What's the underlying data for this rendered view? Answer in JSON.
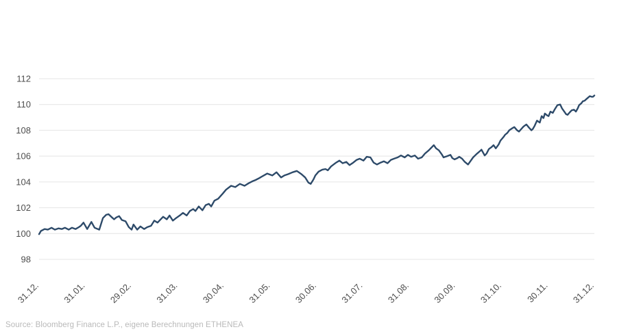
{
  "chart_data": {
    "type": "line",
    "title": "",
    "xlabel": "",
    "ylabel": "",
    "legend": "none",
    "grid": "horizontal",
    "line_color": "#2d4a69",
    "grid_color": "#e4e4e4",
    "tick_label_color": "#4d4d4d",
    "ylim": [
      98,
      112
    ],
    "y_ticks": [
      112,
      110,
      108,
      106,
      104,
      102,
      100,
      98
    ],
    "x_tick_labels": [
      "31.12.",
      "31.01.",
      "29.02.",
      "31.03.",
      "30.04.",
      "31.05.",
      "30.06.",
      "31.07.",
      "31.08.",
      "30.09.",
      "31.10.",
      "30.11.",
      "31.12."
    ],
    "x_unit": "months_from_start",
    "points": [
      [
        0.0,
        99.95
      ],
      [
        0.04,
        100.2
      ],
      [
        0.12,
        100.35
      ],
      [
        0.19,
        100.3
      ],
      [
        0.27,
        100.45
      ],
      [
        0.34,
        100.3
      ],
      [
        0.42,
        100.4
      ],
      [
        0.49,
        100.35
      ],
      [
        0.56,
        100.45
      ],
      [
        0.64,
        100.3
      ],
      [
        0.71,
        100.45
      ],
      [
        0.79,
        100.35
      ],
      [
        0.86,
        100.5
      ],
      [
        0.9,
        100.6
      ],
      [
        0.96,
        100.85
      ],
      [
        1.04,
        100.35
      ],
      [
        1.13,
        100.9
      ],
      [
        1.2,
        100.45
      ],
      [
        1.3,
        100.3
      ],
      [
        1.38,
        101.2
      ],
      [
        1.45,
        101.45
      ],
      [
        1.5,
        101.5
      ],
      [
        1.56,
        101.3
      ],
      [
        1.62,
        101.1
      ],
      [
        1.67,
        101.25
      ],
      [
        1.73,
        101.35
      ],
      [
        1.79,
        101.05
      ],
      [
        1.87,
        100.95
      ],
      [
        1.94,
        100.5
      ],
      [
        2.0,
        100.3
      ],
      [
        2.04,
        100.7
      ],
      [
        2.12,
        100.3
      ],
      [
        2.19,
        100.55
      ],
      [
        2.27,
        100.35
      ],
      [
        2.34,
        100.5
      ],
      [
        2.42,
        100.6
      ],
      [
        2.49,
        101.0
      ],
      [
        2.56,
        100.85
      ],
      [
        2.68,
        101.3
      ],
      [
        2.76,
        101.1
      ],
      [
        2.82,
        101.4
      ],
      [
        2.89,
        101.0
      ],
      [
        2.96,
        101.2
      ],
      [
        3.04,
        101.4
      ],
      [
        3.11,
        101.6
      ],
      [
        3.19,
        101.4
      ],
      [
        3.26,
        101.75
      ],
      [
        3.33,
        101.9
      ],
      [
        3.38,
        101.75
      ],
      [
        3.45,
        102.1
      ],
      [
        3.53,
        101.8
      ],
      [
        3.6,
        102.2
      ],
      [
        3.67,
        102.3
      ],
      [
        3.72,
        102.1
      ],
      [
        3.79,
        102.55
      ],
      [
        3.87,
        102.7
      ],
      [
        3.97,
        103.1
      ],
      [
        4.04,
        103.4
      ],
      [
        4.15,
        103.7
      ],
      [
        4.24,
        103.6
      ],
      [
        4.34,
        103.85
      ],
      [
        4.44,
        103.7
      ],
      [
        4.53,
        103.9
      ],
      [
        4.61,
        104.05
      ],
      [
        4.68,
        104.15
      ],
      [
        4.76,
        104.3
      ],
      [
        4.83,
        104.45
      ],
      [
        4.93,
        104.65
      ],
      [
        5.04,
        104.5
      ],
      [
        5.13,
        104.75
      ],
      [
        5.23,
        104.35
      ],
      [
        5.3,
        104.5
      ],
      [
        5.38,
        104.6
      ],
      [
        5.48,
        104.75
      ],
      [
        5.57,
        104.85
      ],
      [
        5.67,
        104.6
      ],
      [
        5.75,
        104.35
      ],
      [
        5.82,
        103.95
      ],
      [
        5.87,
        103.85
      ],
      [
        5.93,
        104.2
      ],
      [
        5.97,
        104.5
      ],
      [
        6.04,
        104.8
      ],
      [
        6.12,
        104.95
      ],
      [
        6.19,
        105.0
      ],
      [
        6.24,
        104.9
      ],
      [
        6.31,
        105.2
      ],
      [
        6.42,
        105.5
      ],
      [
        6.49,
        105.65
      ],
      [
        6.56,
        105.45
      ],
      [
        6.64,
        105.55
      ],
      [
        6.71,
        105.3
      ],
      [
        6.79,
        105.5
      ],
      [
        6.86,
        105.7
      ],
      [
        6.93,
        105.8
      ],
      [
        7.01,
        105.65
      ],
      [
        7.08,
        105.95
      ],
      [
        7.16,
        105.9
      ],
      [
        7.23,
        105.5
      ],
      [
        7.3,
        105.35
      ],
      [
        7.38,
        105.5
      ],
      [
        7.45,
        105.6
      ],
      [
        7.53,
        105.45
      ],
      [
        7.6,
        105.7
      ],
      [
        7.67,
        105.8
      ],
      [
        7.75,
        105.9
      ],
      [
        7.82,
        106.05
      ],
      [
        7.9,
        105.9
      ],
      [
        7.97,
        106.1
      ],
      [
        8.04,
        105.95
      ],
      [
        8.12,
        106.05
      ],
      [
        8.19,
        105.8
      ],
      [
        8.27,
        105.9
      ],
      [
        8.34,
        106.2
      ],
      [
        8.42,
        106.45
      ],
      [
        8.49,
        106.7
      ],
      [
        8.53,
        106.85
      ],
      [
        8.58,
        106.6
      ],
      [
        8.64,
        106.45
      ],
      [
        8.71,
        106.1
      ],
      [
        8.74,
        105.9
      ],
      [
        8.82,
        106.0
      ],
      [
        8.89,
        106.1
      ],
      [
        8.93,
        105.85
      ],
      [
        8.98,
        105.75
      ],
      [
        9.04,
        105.85
      ],
      [
        9.08,
        105.95
      ],
      [
        9.14,
        105.8
      ],
      [
        9.2,
        105.55
      ],
      [
        9.27,
        105.35
      ],
      [
        9.38,
        105.9
      ],
      [
        9.45,
        106.15
      ],
      [
        9.53,
        106.4
      ],
      [
        9.56,
        106.5
      ],
      [
        9.63,
        106.05
      ],
      [
        9.67,
        106.2
      ],
      [
        9.72,
        106.55
      ],
      [
        9.78,
        106.7
      ],
      [
        9.82,
        106.85
      ],
      [
        9.87,
        106.6
      ],
      [
        9.93,
        106.9
      ],
      [
        9.97,
        107.2
      ],
      [
        10.04,
        107.5
      ],
      [
        10.07,
        107.65
      ],
      [
        10.12,
        107.8
      ],
      [
        10.16,
        108.0
      ],
      [
        10.22,
        108.15
      ],
      [
        10.27,
        108.25
      ],
      [
        10.33,
        108.0
      ],
      [
        10.37,
        107.9
      ],
      [
        10.42,
        108.1
      ],
      [
        10.47,
        108.3
      ],
      [
        10.53,
        108.45
      ],
      [
        10.59,
        108.2
      ],
      [
        10.64,
        108.0
      ],
      [
        10.67,
        108.1
      ],
      [
        10.71,
        108.35
      ],
      [
        10.76,
        108.75
      ],
      [
        10.82,
        108.6
      ],
      [
        10.86,
        109.1
      ],
      [
        10.9,
        108.95
      ],
      [
        10.93,
        109.3
      ],
      [
        10.98,
        109.15
      ],
      [
        11.01,
        109.1
      ],
      [
        11.05,
        109.45
      ],
      [
        11.1,
        109.35
      ],
      [
        11.14,
        109.6
      ],
      [
        11.2,
        109.95
      ],
      [
        11.26,
        110.0
      ],
      [
        11.3,
        109.7
      ],
      [
        11.35,
        109.45
      ],
      [
        11.39,
        109.25
      ],
      [
        11.42,
        109.2
      ],
      [
        11.47,
        109.4
      ],
      [
        11.51,
        109.55
      ],
      [
        11.56,
        109.6
      ],
      [
        11.6,
        109.45
      ],
      [
        11.64,
        109.7
      ],
      [
        11.67,
        109.95
      ],
      [
        11.72,
        110.1
      ],
      [
        11.75,
        110.25
      ],
      [
        11.79,
        110.3
      ],
      [
        11.82,
        110.4
      ],
      [
        11.87,
        110.55
      ],
      [
        11.9,
        110.65
      ],
      [
        11.94,
        110.6
      ],
      [
        11.97,
        110.6
      ],
      [
        12.0,
        110.7
      ]
    ]
  },
  "footer": {
    "source": "Source: Bloomberg Finance L.P., eigene Berechnungen ETHENEA",
    "color": "#b9b9b9"
  }
}
